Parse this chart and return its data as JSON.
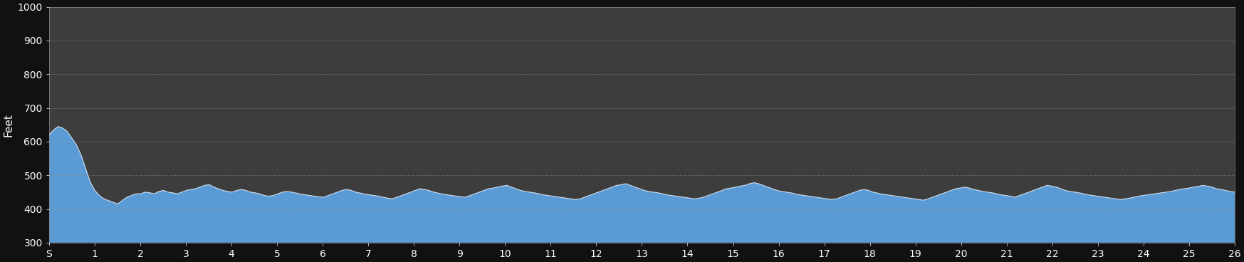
{
  "background_color": "#111111",
  "plot_bg_color": "#3d3d3d",
  "fill_color_top": "#5b9bd5",
  "fill_color_bottom": "#2e6da4",
  "line_color": "#d0dff0",
  "ylabel": "Feet",
  "ylim": [
    300,
    1000
  ],
  "yticks": [
    300,
    400,
    500,
    600,
    700,
    800,
    900,
    1000
  ],
  "ytick_labels": [
    "300",
    "400",
    "500",
    "600",
    "700",
    "800",
    "900",
    "1000"
  ],
  "xlim": [
    0,
    26
  ],
  "xtick_labels": [
    "S",
    "1",
    "2",
    "3",
    "4",
    "5",
    "6",
    "7",
    "8",
    "9",
    "10",
    "11",
    "12",
    "13",
    "14",
    "15",
    "16",
    "17",
    "18",
    "19",
    "20",
    "21",
    "22",
    "23",
    "24",
    "25",
    "26"
  ],
  "grid_color": "#888888",
  "grid_style": "dotted",
  "elevation_profile": [
    620,
    635,
    645,
    640,
    630,
    610,
    590,
    560,
    520,
    480,
    455,
    440,
    430,
    425,
    420,
    415,
    425,
    435,
    440,
    445,
    445,
    450,
    448,
    445,
    452,
    455,
    450,
    448,
    445,
    450,
    455,
    458,
    460,
    465,
    470,
    472,
    465,
    460,
    455,
    452,
    450,
    455,
    458,
    455,
    450,
    448,
    445,
    440,
    438,
    440,
    445,
    450,
    452,
    450,
    447,
    444,
    442,
    440,
    438,
    436,
    435,
    440,
    445,
    450,
    455,
    458,
    455,
    450,
    447,
    444,
    442,
    440,
    438,
    435,
    432,
    430,
    435,
    440,
    445,
    450,
    455,
    460,
    458,
    455,
    450,
    447,
    444,
    442,
    440,
    438,
    436,
    435,
    440,
    445,
    450,
    455,
    460,
    462,
    465,
    468,
    470,
    465,
    460,
    455,
    452,
    450,
    448,
    445,
    442,
    440,
    438,
    436,
    434,
    432,
    430,
    428,
    430,
    435,
    440,
    445,
    450,
    455,
    460,
    465,
    470,
    472,
    475,
    470,
    465,
    460,
    455,
    452,
    450,
    448,
    445,
    442,
    440,
    438,
    436,
    434,
    432,
    430,
    432,
    435,
    440,
    445,
    450,
    455,
    460,
    462,
    465,
    468,
    470,
    475,
    478,
    475,
    470,
    465,
    460,
    455,
    452,
    450,
    448,
    445,
    442,
    440,
    438,
    436,
    434,
    432,
    430,
    428,
    430,
    435,
    440,
    445,
    450,
    455,
    458,
    455,
    450,
    447,
    444,
    442,
    440,
    438,
    436,
    434,
    432,
    430,
    428,
    426,
    430,
    435,
    440,
    445,
    450,
    455,
    460,
    462,
    465,
    462,
    458,
    455,
    452,
    450,
    448,
    445,
    442,
    440,
    438,
    435,
    440,
    445,
    450,
    455,
    460,
    465,
    470,
    468,
    465,
    460,
    455,
    452,
    450,
    448,
    445,
    442,
    440,
    438,
    436,
    434,
    432,
    430,
    428,
    430,
    432,
    435,
    438,
    440,
    442,
    444,
    446,
    448,
    450,
    452,
    455,
    458,
    460,
    462,
    465,
    467,
    470,
    468,
    465,
    460,
    458,
    455,
    452,
    450
  ]
}
